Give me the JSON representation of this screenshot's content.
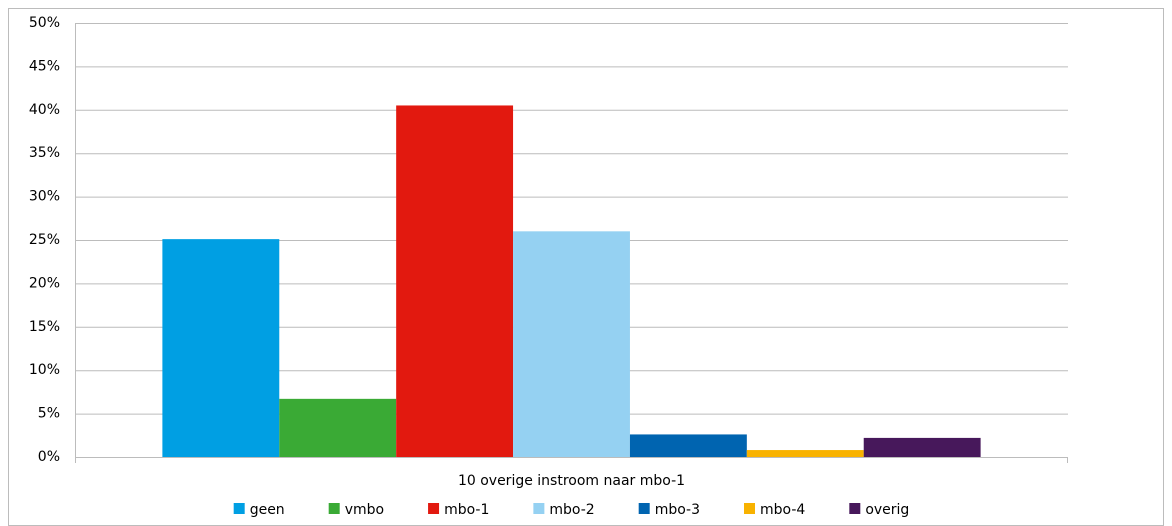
{
  "chart_data": {
    "type": "bar",
    "categories": [
      "10 overige instroom naar mbo-1"
    ],
    "series": [
      {
        "name": "geen",
        "color": "#009fe3",
        "values": [
          25.1
        ]
      },
      {
        "name": "vmbo",
        "color": "#3aaa35",
        "values": [
          6.7
        ]
      },
      {
        "name": "mbo-1",
        "color": "#e2190f",
        "values": [
          40.5
        ]
      },
      {
        "name": "mbo-2",
        "color": "#95d1f2",
        "values": [
          26.0
        ]
      },
      {
        "name": "mbo-3",
        "color": "#0064b0",
        "values": [
          2.6
        ]
      },
      {
        "name": "mbo-4",
        "color": "#f8b200",
        "values": [
          0.8
        ]
      },
      {
        "name": "overig",
        "color": "#47185b",
        "values": [
          2.2
        ]
      }
    ],
    "ylim": [
      0,
      50
    ],
    "yticks": [
      {
        "value": 0,
        "label": "0%"
      },
      {
        "value": 5,
        "label": "5%"
      },
      {
        "value": 10,
        "label": "10%"
      },
      {
        "value": 15,
        "label": "15%"
      },
      {
        "value": 20,
        "label": "20%"
      },
      {
        "value": 25,
        "label": "25%"
      },
      {
        "value": 30,
        "label": "30%"
      },
      {
        "value": 35,
        "label": "35%"
      },
      {
        "value": 40,
        "label": "40%"
      },
      {
        "value": 45,
        "label": "45%"
      },
      {
        "value": 50,
        "label": "50%"
      }
    ],
    "grid": true,
    "legend": "bottom"
  }
}
